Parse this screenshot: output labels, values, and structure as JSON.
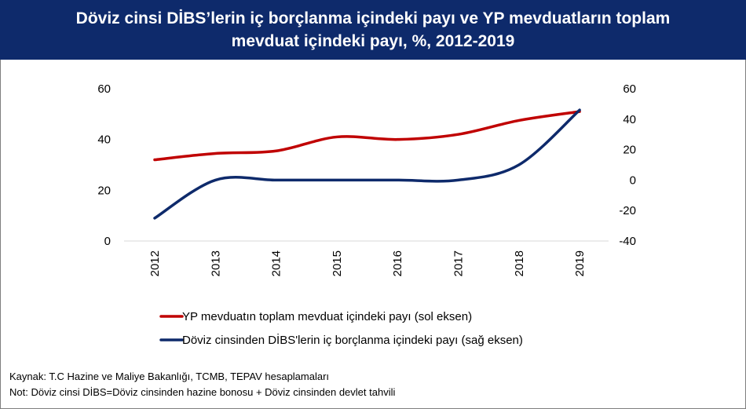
{
  "title": {
    "line1": "Döviz cinsi DİBS’lerin iç borçlanma içindeki payı ve YP mevduatların toplam",
    "line2": "mevduat içindeki payı, %, 2012-2019"
  },
  "footer": {
    "source": "Kaynak: T.C Hazine ve Maliye Bakanlığı, TCMB, TEPAV hesaplamaları",
    "note": "Not: Döviz cinsi DİBS=Döviz cinsinden hazine bonosu + Döviz cinsinden devlet tahvili"
  },
  "chart_data": {
    "type": "line",
    "x": [
      "2012",
      "2013",
      "2014",
      "2015",
      "2016",
      "2017",
      "2018",
      "2019"
    ],
    "y_left": {
      "ylim": [
        0,
        60
      ],
      "ticks": [
        "0",
        "20",
        "40",
        "60"
      ]
    },
    "y_right": {
      "ylim": [
        -40,
        60
      ],
      "ticks": [
        "-40",
        "-20",
        "0",
        "20",
        "40",
        "60"
      ]
    },
    "series": [
      {
        "name": "YP mevduatın toplam mevduat içindeki payı (sol eksen)",
        "axis": "left",
        "color": "#c00000",
        "values": [
          32,
          34.5,
          35.5,
          41,
          40,
          42,
          47.5,
          51
        ]
      },
      {
        "name": "Döviz cinsinden DİBS'lerin iç borçlanma içindeki payı (sağ eksen)",
        "axis": "right",
        "color": "#0e2a6b",
        "values": [
          -25,
          0,
          0,
          0,
          0,
          0,
          10,
          46
        ]
      }
    ],
    "legend_position": "bottom",
    "grid": false
  }
}
